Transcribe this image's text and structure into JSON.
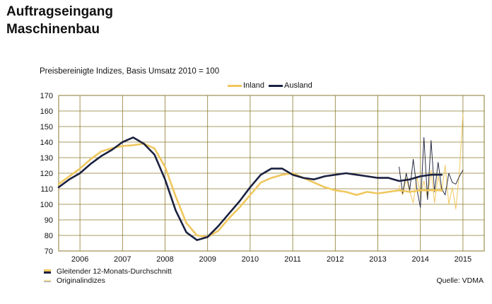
{
  "header": {
    "title_line1": "Auftragseingang",
    "title_line2": "Maschinenbau"
  },
  "subtitle": "Preisbereinigte Indizes, Basis Umsatz 2010 = 100",
  "legend": {
    "inland_label": "Inland",
    "ausland_label": "Ausland",
    "moving_avg_label": "Gleitender 12-Monats-Durchschnitt",
    "original_label": "Originalindizes"
  },
  "source": "Quelle: VDMA",
  "colors": {
    "inland": "#f0c75e",
    "ausland": "#1b2140",
    "grid": "#8b7a2e"
  },
  "chart_data": {
    "type": "line",
    "ylim": [
      70,
      170
    ],
    "yticks": [
      70,
      80,
      90,
      100,
      110,
      120,
      130,
      140,
      150,
      160,
      170
    ],
    "xlim": [
      2005.5,
      2015.5
    ],
    "xtick_labels": [
      "2006",
      "2007",
      "2008",
      "2009",
      "2010",
      "2011",
      "2012",
      "2013",
      "2014",
      "2015"
    ],
    "grid": true,
    "series": [
      {
        "name": "Inland",
        "kind": "moving_average",
        "x": [
          2005.5,
          2005.75,
          2006.0,
          2006.25,
          2006.5,
          2006.75,
          2007.0,
          2007.25,
          2007.5,
          2007.75,
          2008.0,
          2008.25,
          2008.5,
          2008.75,
          2009.0,
          2009.25,
          2009.5,
          2009.75,
          2010.0,
          2010.25,
          2010.5,
          2010.75,
          2011.0,
          2011.25,
          2011.5,
          2011.75,
          2012.0,
          2012.25,
          2012.5,
          2012.75,
          2013.0,
          2013.25,
          2013.5,
          2013.75,
          2014.0,
          2014.25,
          2014.5
        ],
        "y": [
          113,
          118,
          123,
          129,
          134,
          136,
          137.5,
          138,
          139,
          136,
          124,
          105,
          88,
          80,
          79,
          83,
          91,
          98,
          106,
          114,
          117,
          119,
          120,
          117,
          114,
          111,
          109,
          108,
          106,
          108,
          107,
          108,
          109,
          108,
          109,
          109,
          109
        ]
      },
      {
        "name": "Ausland",
        "kind": "moving_average",
        "x": [
          2005.5,
          2005.75,
          2006.0,
          2006.25,
          2006.5,
          2006.75,
          2007.0,
          2007.25,
          2007.5,
          2007.75,
          2008.0,
          2008.25,
          2008.5,
          2008.75,
          2009.0,
          2009.25,
          2009.5,
          2009.75,
          2010.0,
          2010.25,
          2010.5,
          2010.75,
          2011.0,
          2011.25,
          2011.5,
          2011.75,
          2012.0,
          2012.25,
          2012.5,
          2012.75,
          2013.0,
          2013.25,
          2013.5,
          2013.75,
          2014.0,
          2014.25,
          2014.5
        ],
        "y": [
          111,
          116,
          120,
          126,
          131,
          135,
          140,
          143,
          139,
          132,
          116,
          96,
          82,
          77,
          79,
          86,
          94,
          102,
          111,
          119,
          123,
          123,
          119,
          117,
          116,
          118,
          119,
          120,
          119,
          118,
          117,
          117,
          115,
          116,
          118,
          119,
          119
        ]
      },
      {
        "name": "Inland",
        "kind": "original",
        "x": [
          2013.5,
          2013.583,
          2013.667,
          2013.75,
          2013.833,
          2013.917,
          2014.0,
          2014.083,
          2014.167,
          2014.25,
          2014.333,
          2014.417,
          2014.5,
          2014.583,
          2014.667,
          2014.75,
          2014.833,
          2014.917,
          2015.0
        ],
        "y": [
          112,
          106,
          117,
          108,
          101,
          118,
          106,
          115,
          104,
          122,
          101,
          118,
          108,
          125,
          100,
          111,
          97,
          121,
          158
        ]
      },
      {
        "name": "Ausland",
        "kind": "original",
        "x": [
          2013.5,
          2013.583,
          2013.667,
          2013.75,
          2013.833,
          2013.917,
          2014.0,
          2014.083,
          2014.167,
          2014.25,
          2014.333,
          2014.417,
          2014.5,
          2014.583,
          2014.667,
          2014.75,
          2014.833,
          2014.917,
          2015.0
        ],
        "y": [
          124,
          107,
          120,
          109,
          129,
          110,
          98,
          143,
          103,
          141,
          108,
          127,
          110,
          106,
          120,
          114,
          113,
          118,
          122
        ]
      }
    ]
  }
}
